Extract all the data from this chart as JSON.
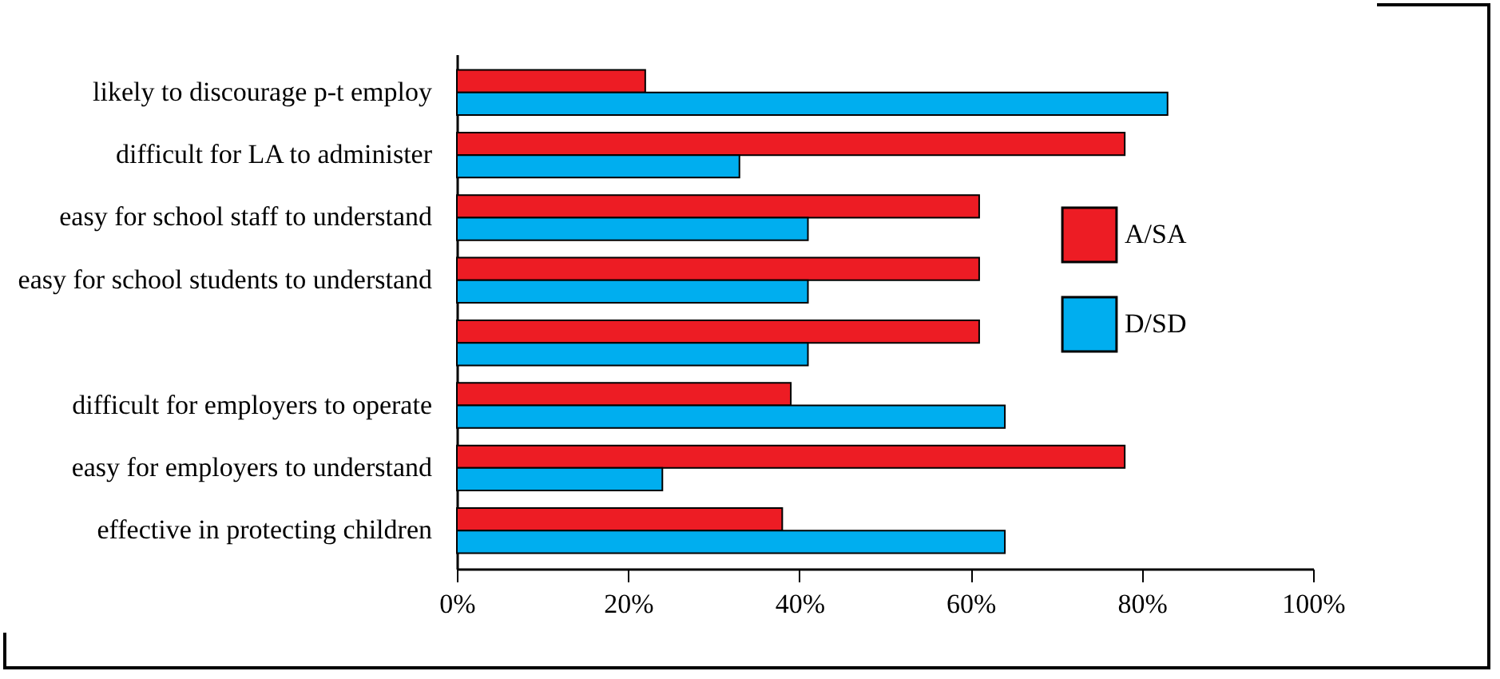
{
  "chart_data": {
    "type": "bar",
    "orientation": "horizontal",
    "categories": [
      "likely to discourage p-t employ",
      "difficult for LA to administer",
      "easy for school staff to understand",
      "easy for school students to understand",
      null,
      "difficult for employers to operate",
      "easy for employers to understand",
      "effective in protecting children"
    ],
    "series": [
      {
        "name": "A/SA",
        "color": "#ed1c24",
        "values": [
          22,
          78,
          61,
          61,
          61,
          39,
          78,
          38
        ]
      },
      {
        "name": "D/SD",
        "color": "#00aeef",
        "values": [
          83,
          33,
          41,
          41,
          41,
          64,
          24,
          64
        ]
      }
    ],
    "xlim": [
      0,
      100
    ],
    "xticks": [
      {
        "value": 0,
        "label": "0%"
      },
      {
        "value": 20,
        "label": "20%"
      },
      {
        "value": 40,
        "label": "40%"
      },
      {
        "value": 60,
        "label": "60%"
      },
      {
        "value": 80,
        "label": "80%"
      },
      {
        "value": 100,
        "label": "100%"
      }
    ],
    "grid": false,
    "legend": "right"
  }
}
